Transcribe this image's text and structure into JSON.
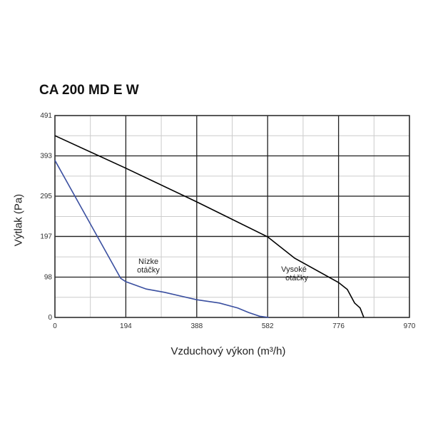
{
  "chart_data": {
    "type": "line",
    "title": "CA 200 MD E W",
    "xlabel": "Vzduchový výkon (m³/h)",
    "ylabel": "Výtlak (Pa)",
    "xlim": [
      0,
      970
    ],
    "ylim": [
      0,
      491
    ],
    "xticks": [
      "0",
      "194",
      "388",
      "582",
      "776",
      "970"
    ],
    "yticks": [
      "0",
      "98",
      "197",
      "295",
      "393",
      "491"
    ],
    "grid": true,
    "series": [
      {
        "name": "Vysoké otáčky",
        "color": "#000000",
        "x": [
          0,
          194,
          388,
          582,
          656,
          776,
          800,
          820,
          835,
          845
        ],
        "y": [
          442,
          363,
          281,
          196,
          144,
          85,
          68,
          35,
          23,
          0
        ]
      },
      {
        "name": "Nízke otáčky",
        "color": "#3a4fa0",
        "x": [
          0,
          180,
          194,
          250,
          300,
          388,
          450,
          500,
          530,
          560,
          585
        ],
        "y": [
          382,
          95,
          87,
          69,
          61,
          43,
          35,
          23,
          12,
          3,
          0
        ]
      }
    ],
    "annotations": [
      {
        "text1": "Nízke",
        "text2": "otáčky"
      },
      {
        "text1": "Vysoké",
        "text2": "otáčky"
      }
    ]
  }
}
